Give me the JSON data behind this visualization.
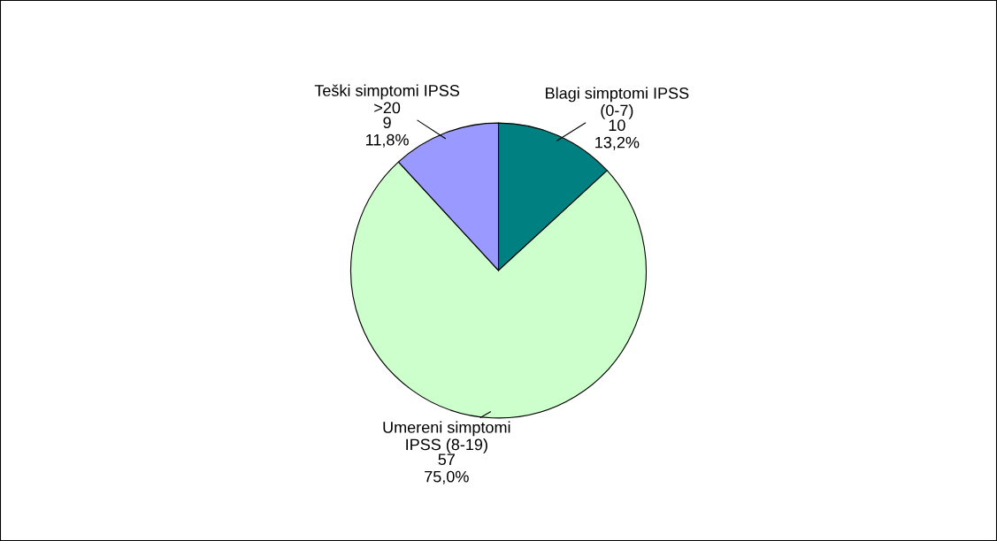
{
  "chart_data": {
    "type": "pie",
    "categories": [
      "Blagi simptomi IPSS\n(0-7)",
      "Umereni simptomi\nIPSS (8-19)",
      "Teški simptomi IPSS\n>20"
    ],
    "values": [
      10,
      57,
      9
    ],
    "value_labels": [
      "10\n13,2%",
      "57\n75,0%",
      "9\n11,8%"
    ],
    "colors": [
      "#008080",
      "#ccffcc",
      "#9999ff"
    ],
    "legend": false
  }
}
